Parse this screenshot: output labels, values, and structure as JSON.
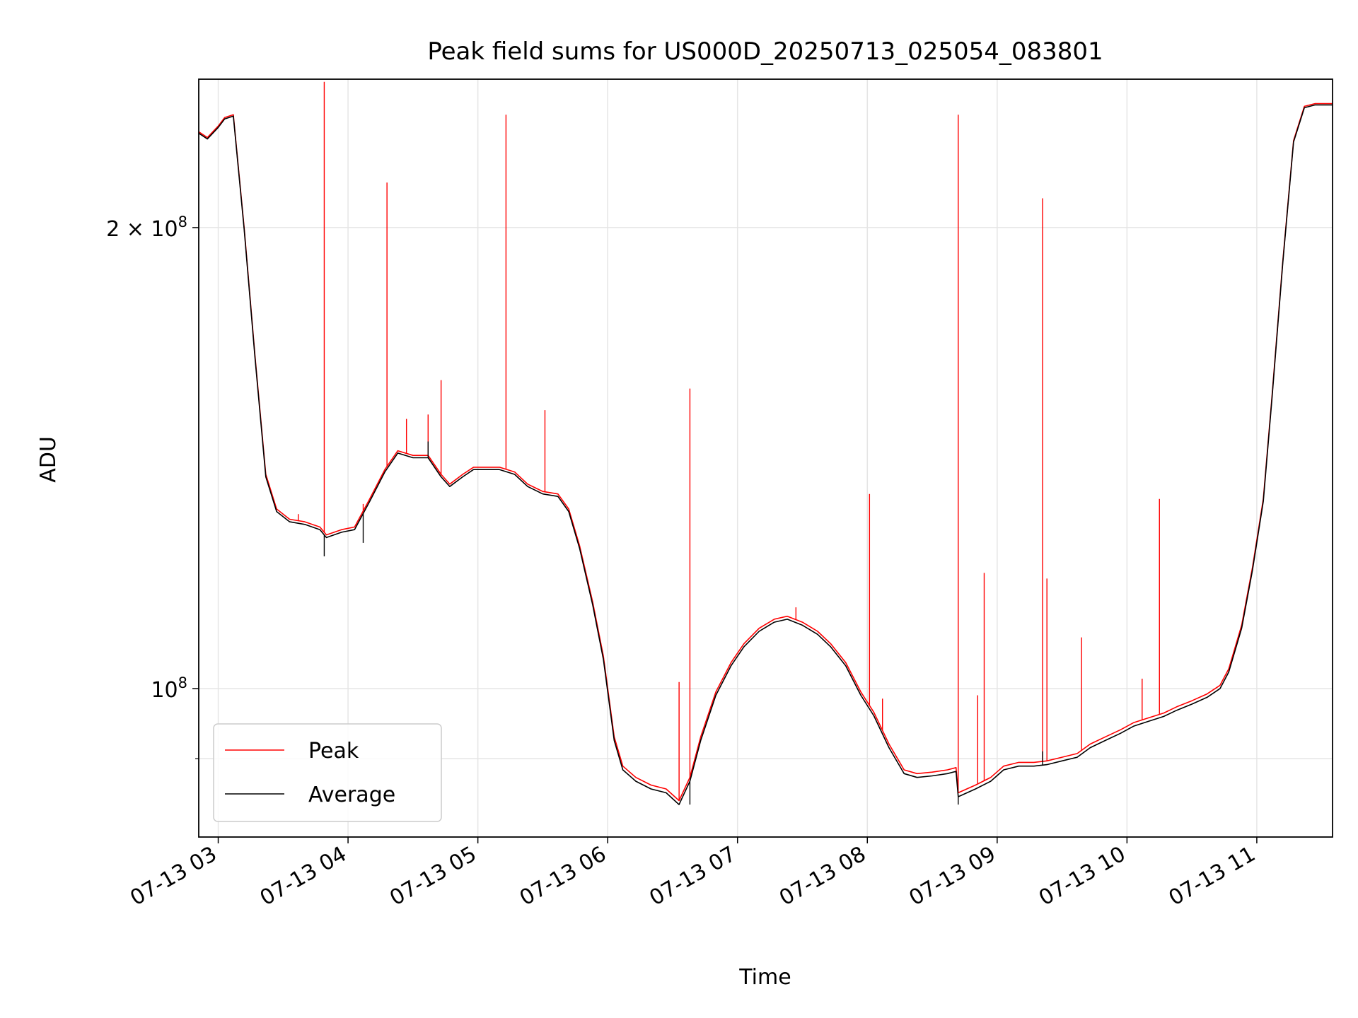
{
  "chart_data": {
    "type": "line",
    "title": "Peak field sums for US000D_20250713_025054_083801",
    "xlabel": "Time",
    "ylabel": "ADU",
    "yscale": "log",
    "xlim": [
      "2025-07-13 02:51",
      "2025-07-13 11:35"
    ],
    "ylim": [
      80000000,
      250000000
    ],
    "grid": true,
    "legend_location": "lower left",
    "x_ticks": [
      "07-13 03",
      "07-13 04",
      "07-13 05",
      "07-13 06",
      "07-13 07",
      "07-13 08",
      "07-13 09",
      "07-13 10",
      "07-13 11"
    ],
    "y_ticks": [
      {
        "value": 100000000,
        "label_base": "10",
        "label_exp": "8"
      },
      {
        "value": 200000000,
        "label_base": "2 × 10",
        "label_exp": "8"
      }
    ],
    "y_minor_ticks": [
      90000000
    ],
    "series": [
      {
        "name": "Peak",
        "color": "#ff0000",
        "points": [
          [
            "2025-07-13 02:51",
            231000000
          ],
          [
            "2025-07-13 02:55",
            229000000
          ],
          [
            "2025-07-13 03:00",
            233000000
          ],
          [
            "2025-07-13 03:03",
            236000000
          ],
          [
            "2025-07-13 03:07",
            237000000
          ],
          [
            "2025-07-13 03:12",
            200000000
          ],
          [
            "2025-07-13 03:17",
            165000000
          ],
          [
            "2025-07-13 03:22",
            138000000
          ],
          [
            "2025-07-13 03:27",
            131000000
          ],
          [
            "2025-07-13 03:33",
            129000000
          ],
          [
            "2025-07-13 03:40",
            128500000
          ],
          [
            "2025-07-13 03:47",
            127500000
          ],
          [
            "2025-07-13 03:50",
            126000000
          ],
          [
            "2025-07-13 03:57",
            127000000
          ],
          [
            "2025-07-13 04:03",
            127500000
          ],
          [
            "2025-07-13 04:10",
            133000000
          ],
          [
            "2025-07-13 04:17",
            139000000
          ],
          [
            "2025-07-13 04:23",
            143000000
          ],
          [
            "2025-07-13 04:30",
            142000000
          ],
          [
            "2025-07-13 04:37",
            142000000
          ],
          [
            "2025-07-13 04:43",
            138000000
          ],
          [
            "2025-07-13 04:47",
            136000000
          ],
          [
            "2025-07-13 04:53",
            138000000
          ],
          [
            "2025-07-13 04:58",
            139500000
          ],
          [
            "2025-07-13 05:03",
            139500000
          ],
          [
            "2025-07-13 05:10",
            139500000
          ],
          [
            "2025-07-13 05:17",
            138500000
          ],
          [
            "2025-07-13 05:23",
            136000000
          ],
          [
            "2025-07-13 05:30",
            134500000
          ],
          [
            "2025-07-13 05:37",
            134000000
          ],
          [
            "2025-07-13 05:42",
            131000000
          ],
          [
            "2025-07-13 05:47",
            124000000
          ],
          [
            "2025-07-13 05:53",
            114000000
          ],
          [
            "2025-07-13 05:58",
            105000000
          ],
          [
            "2025-07-13 06:03",
            93000000
          ],
          [
            "2025-07-13 06:07",
            89000000
          ],
          [
            "2025-07-13 06:13",
            87500000
          ],
          [
            "2025-07-13 06:20",
            86500000
          ],
          [
            "2025-07-13 06:27",
            86000000
          ],
          [
            "2025-07-13 06:33",
            84500000
          ],
          [
            "2025-07-13 06:38",
            87500000
          ],
          [
            "2025-07-13 06:43",
            93000000
          ],
          [
            "2025-07-13 06:50",
            99500000
          ],
          [
            "2025-07-13 06:57",
            104000000
          ],
          [
            "2025-07-13 07:03",
            107000000
          ],
          [
            "2025-07-13 07:10",
            109500000
          ],
          [
            "2025-07-13 07:17",
            111000000
          ],
          [
            "2025-07-13 07:23",
            111500000
          ],
          [
            "2025-07-13 07:30",
            110500000
          ],
          [
            "2025-07-13 07:37",
            109000000
          ],
          [
            "2025-07-13 07:43",
            107000000
          ],
          [
            "2025-07-13 07:50",
            104000000
          ],
          [
            "2025-07-13 07:57",
            99500000
          ],
          [
            "2025-07-13 08:03",
            96500000
          ],
          [
            "2025-07-13 08:10",
            92000000
          ],
          [
            "2025-07-13 08:17",
            88500000
          ],
          [
            "2025-07-13 08:23",
            88000000
          ],
          [
            "2025-07-13 08:30",
            88200000
          ],
          [
            "2025-07-13 08:37",
            88500000
          ],
          [
            "2025-07-13 08:41",
            88800000
          ],
          [
            "2025-07-13 08:42",
            85500000
          ],
          [
            "2025-07-13 08:50",
            86500000
          ],
          [
            "2025-07-13 08:57",
            87500000
          ],
          [
            "2025-07-13 09:03",
            89000000
          ],
          [
            "2025-07-13 09:10",
            89500000
          ],
          [
            "2025-07-13 09:17",
            89500000
          ],
          [
            "2025-07-13 09:23",
            89700000
          ],
          [
            "2025-07-13 09:30",
            90200000
          ],
          [
            "2025-07-13 09:37",
            90700000
          ],
          [
            "2025-07-13 09:43",
            92000000
          ],
          [
            "2025-07-13 09:50",
            93000000
          ],
          [
            "2025-07-13 09:57",
            94000000
          ],
          [
            "2025-07-13 10:03",
            95000000
          ],
          [
            "2025-07-13 10:10",
            95700000
          ],
          [
            "2025-07-13 10:17",
            96400000
          ],
          [
            "2025-07-13 10:23",
            97300000
          ],
          [
            "2025-07-13 10:30",
            98200000
          ],
          [
            "2025-07-13 10:37",
            99200000
          ],
          [
            "2025-07-13 10:43",
            100500000
          ],
          [
            "2025-07-13 10:47",
            103000000
          ],
          [
            "2025-07-13 10:53",
            110000000
          ],
          [
            "2025-07-13 10:58",
            120000000
          ],
          [
            "2025-07-13 11:03",
            133000000
          ],
          [
            "2025-07-13 11:07",
            155000000
          ],
          [
            "2025-07-13 11:12",
            190000000
          ],
          [
            "2025-07-13 11:17",
            228000000
          ],
          [
            "2025-07-13 11:22",
            240000000
          ],
          [
            "2025-07-13 11:27",
            241000000
          ],
          [
            "2025-07-13 11:35",
            241000000
          ]
        ],
        "spikes": [
          [
            "2025-07-13 03:37",
            130000000
          ],
          [
            "2025-07-13 03:49",
            249000000
          ],
          [
            "2025-07-13 04:07",
            132000000
          ],
          [
            "2025-07-13 04:18",
            214000000
          ],
          [
            "2025-07-13 04:27",
            150000000
          ],
          [
            "2025-07-13 04:37",
            151000000
          ],
          [
            "2025-07-13 04:43",
            159000000
          ],
          [
            "2025-07-13 05:13",
            237000000
          ],
          [
            "2025-07-13 05:31",
            152000000
          ],
          [
            "2025-07-13 06:33",
            101000000
          ],
          [
            "2025-07-13 06:38",
            157000000
          ],
          [
            "2025-07-13 07:27",
            113000000
          ],
          [
            "2025-07-13 08:01",
            134000000
          ],
          [
            "2025-07-13 08:07",
            98500000
          ],
          [
            "2025-07-13 08:42",
            237000000
          ],
          [
            "2025-07-13 08:51",
            99000000
          ],
          [
            "2025-07-13 08:54",
            119000000
          ],
          [
            "2025-07-13 09:21",
            209000000
          ],
          [
            "2025-07-13 09:23",
            118000000
          ],
          [
            "2025-07-13 09:39",
            108000000
          ],
          [
            "2025-07-13 10:07",
            101500000
          ],
          [
            "2025-07-13 10:15",
            133000000
          ]
        ]
      },
      {
        "name": "Average",
        "color": "#000000",
        "points": [
          [
            "2025-07-13 02:51",
            230500000
          ],
          [
            "2025-07-13 02:55",
            228500000
          ],
          [
            "2025-07-13 03:00",
            232500000
          ],
          [
            "2025-07-13 03:03",
            235500000
          ],
          [
            "2025-07-13 03:07",
            236500000
          ],
          [
            "2025-07-13 03:12",
            199500000
          ],
          [
            "2025-07-13 03:17",
            164500000
          ],
          [
            "2025-07-13 03:22",
            137500000
          ],
          [
            "2025-07-13 03:27",
            130500000
          ],
          [
            "2025-07-13 03:33",
            128500000
          ],
          [
            "2025-07-13 03:40",
            128000000
          ],
          [
            "2025-07-13 03:47",
            127000000
          ],
          [
            "2025-07-13 03:50",
            125500000
          ],
          [
            "2025-07-13 03:57",
            126500000
          ],
          [
            "2025-07-13 04:03",
            127000000
          ],
          [
            "2025-07-13 04:10",
            132500000
          ],
          [
            "2025-07-13 04:17",
            138500000
          ],
          [
            "2025-07-13 04:23",
            142500000
          ],
          [
            "2025-07-13 04:30",
            141500000
          ],
          [
            "2025-07-13 04:37",
            141500000
          ],
          [
            "2025-07-13 04:43",
            137500000
          ],
          [
            "2025-07-13 04:47",
            135500000
          ],
          [
            "2025-07-13 04:53",
            137500000
          ],
          [
            "2025-07-13 04:58",
            139000000
          ],
          [
            "2025-07-13 05:03",
            139000000
          ],
          [
            "2025-07-13 05:10",
            139000000
          ],
          [
            "2025-07-13 05:17",
            138000000
          ],
          [
            "2025-07-13 05:23",
            135500000
          ],
          [
            "2025-07-13 05:30",
            134000000
          ],
          [
            "2025-07-13 05:37",
            133500000
          ],
          [
            "2025-07-13 05:42",
            130500000
          ],
          [
            "2025-07-13 05:47",
            123500000
          ],
          [
            "2025-07-13 05:53",
            113500000
          ],
          [
            "2025-07-13 05:58",
            104500000
          ],
          [
            "2025-07-13 06:03",
            92500000
          ],
          [
            "2025-07-13 06:07",
            88500000
          ],
          [
            "2025-07-13 06:13",
            87000000
          ],
          [
            "2025-07-13 06:20",
            86000000
          ],
          [
            "2025-07-13 06:27",
            85500000
          ],
          [
            "2025-07-13 06:33",
            84000000
          ],
          [
            "2025-07-13 06:38",
            87000000
          ],
          [
            "2025-07-13 06:43",
            92500000
          ],
          [
            "2025-07-13 06:50",
            99000000
          ],
          [
            "2025-07-13 06:57",
            103500000
          ],
          [
            "2025-07-13 07:03",
            106500000
          ],
          [
            "2025-07-13 07:10",
            109000000
          ],
          [
            "2025-07-13 07:17",
            110500000
          ],
          [
            "2025-07-13 07:23",
            111000000
          ],
          [
            "2025-07-13 07:30",
            110000000
          ],
          [
            "2025-07-13 07:37",
            108500000
          ],
          [
            "2025-07-13 07:43",
            106500000
          ],
          [
            "2025-07-13 07:50",
            103500000
          ],
          [
            "2025-07-13 07:57",
            99000000
          ],
          [
            "2025-07-13 08:03",
            96000000
          ],
          [
            "2025-07-13 08:10",
            91500000
          ],
          [
            "2025-07-13 08:17",
            88000000
          ],
          [
            "2025-07-13 08:23",
            87500000
          ],
          [
            "2025-07-13 08:30",
            87700000
          ],
          [
            "2025-07-13 08:37",
            88000000
          ],
          [
            "2025-07-13 08:41",
            88300000
          ],
          [
            "2025-07-13 08:42",
            85000000
          ],
          [
            "2025-07-13 08:50",
            86000000
          ],
          [
            "2025-07-13 08:57",
            87000000
          ],
          [
            "2025-07-13 09:03",
            88500000
          ],
          [
            "2025-07-13 09:10",
            89000000
          ],
          [
            "2025-07-13 09:17",
            89000000
          ],
          [
            "2025-07-13 09:23",
            89200000
          ],
          [
            "2025-07-13 09:30",
            89700000
          ],
          [
            "2025-07-13 09:37",
            90200000
          ],
          [
            "2025-07-13 09:43",
            91500000
          ],
          [
            "2025-07-13 09:50",
            92500000
          ],
          [
            "2025-07-13 09:57",
            93500000
          ],
          [
            "2025-07-13 10:03",
            94500000
          ],
          [
            "2025-07-13 10:10",
            95200000
          ],
          [
            "2025-07-13 10:17",
            95900000
          ],
          [
            "2025-07-13 10:23",
            96800000
          ],
          [
            "2025-07-13 10:30",
            97700000
          ],
          [
            "2025-07-13 10:37",
            98700000
          ],
          [
            "2025-07-13 10:43",
            100000000
          ],
          [
            "2025-07-13 10:47",
            102500000
          ],
          [
            "2025-07-13 10:53",
            109500000
          ],
          [
            "2025-07-13 10:58",
            119500000
          ],
          [
            "2025-07-13 11:03",
            132500000
          ],
          [
            "2025-07-13 11:07",
            154500000
          ],
          [
            "2025-07-13 11:12",
            189500000
          ],
          [
            "2025-07-13 11:17",
            227500000
          ],
          [
            "2025-07-13 11:22",
            239500000
          ],
          [
            "2025-07-13 11:27",
            240500000
          ],
          [
            "2025-07-13 11:35",
            240500000
          ]
        ],
        "spikes": [
          [
            "2025-07-13 03:49",
            122000000
          ],
          [
            "2025-07-13 04:07",
            124500000
          ],
          [
            "2025-07-13 04:37",
            145000000
          ],
          [
            "2025-07-13 06:38",
            84000000
          ],
          [
            "2025-07-13 08:42",
            84000000
          ],
          [
            "2025-07-13 09:21",
            91000000
          ]
        ]
      }
    ]
  }
}
